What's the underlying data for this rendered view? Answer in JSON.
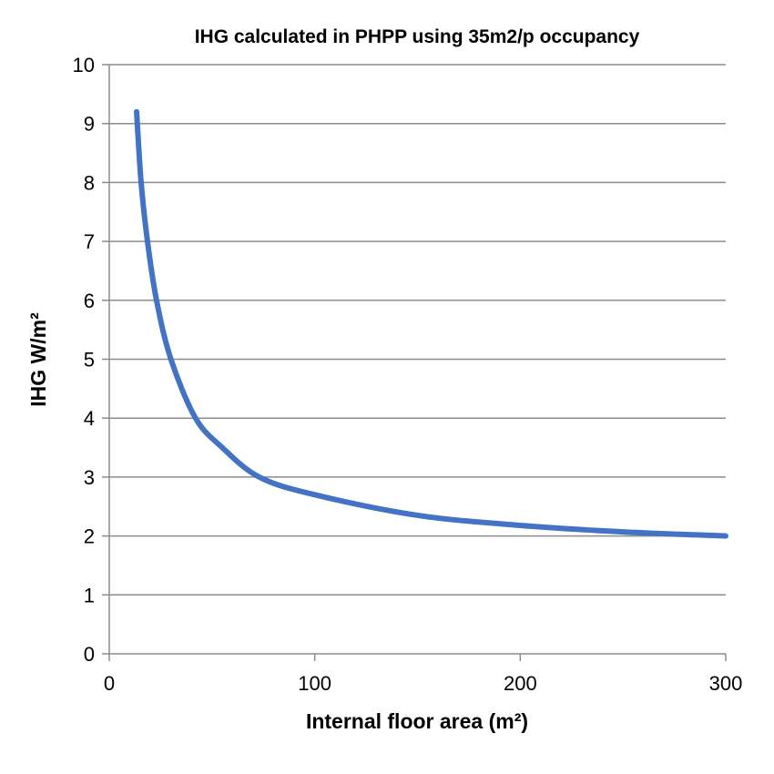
{
  "chart_data": {
    "type": "line",
    "title": "IHG calculated in PHPP using 35m2/p occupancy",
    "xlabel": "Internal floor area (m²)",
    "ylabel": "IHG W/m²",
    "xlim": [
      0,
      300
    ],
    "ylim": [
      0,
      10
    ],
    "xticks": [
      0,
      100,
      200,
      300
    ],
    "yticks": [
      0,
      1,
      2,
      3,
      4,
      5,
      6,
      7,
      8,
      9,
      10
    ],
    "grid": "horizontal",
    "series": [
      {
        "color": "#4472C4",
        "x": [
          13.3,
          15.5,
          18.6,
          23,
          30,
          42,
          55,
          73,
          100,
          150,
          200,
          250,
          300
        ],
        "y": [
          9.2,
          8,
          7,
          6,
          5,
          4,
          3.5,
          3,
          2.7,
          2.35,
          2.18,
          2.07,
          2.0
        ]
      }
    ]
  }
}
